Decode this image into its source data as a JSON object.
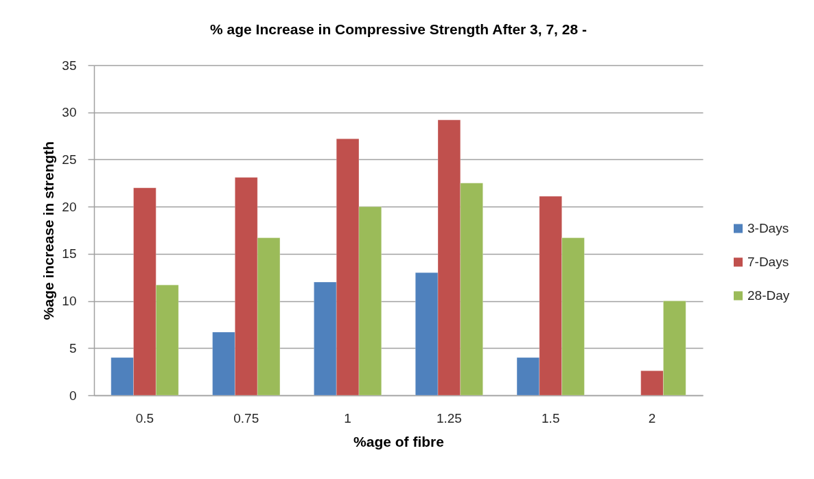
{
  "chart_data": {
    "type": "bar",
    "title": "% age Increase in Compressive Strength After 3, 7, 28 -",
    "xlabel": "%age of fibre",
    "ylabel": "%age increase in strength",
    "categories": [
      "0.5",
      "0.75",
      "1",
      "1.25",
      "1.5",
      "2"
    ],
    "series": [
      {
        "name": "3-Days",
        "color": "#4f81bd",
        "values": [
          4.0,
          6.7,
          12.0,
          13.0,
          4.0,
          null
        ]
      },
      {
        "name": "7-Days",
        "color": "#c0504d",
        "values": [
          22.0,
          23.1,
          27.2,
          29.2,
          21.1,
          2.6
        ]
      },
      {
        "name": "28-Day",
        "color": "#9bbb59",
        "values": [
          11.7,
          16.7,
          20.0,
          22.5,
          16.7,
          10.0
        ]
      }
    ],
    "ylim": [
      0,
      35
    ],
    "yticks": [
      0,
      5,
      10,
      15,
      20,
      25,
      30,
      35
    ],
    "grid": "y",
    "legend": "right"
  }
}
